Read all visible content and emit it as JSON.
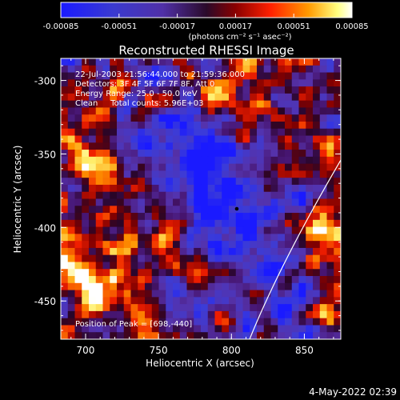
{
  "colorbar": {
    "tick_labels": [
      "-0.00085",
      "-0.00051",
      "-0.00017",
      "0.00017",
      "0.00051",
      "0.00085"
    ],
    "units_label": "(photons cm⁻² s⁻¹ asec⁻²)",
    "range": [
      -0.00085,
      0.00085
    ]
  },
  "chart_data": {
    "type": "heatmap",
    "title": "Reconstructed RHESSI Image",
    "xlabel": "Heliocentric X (arcsec)",
    "ylabel": "Heliocentric Y (arcsec)",
    "xlim": [
      683,
      875
    ],
    "ylim": [
      -476,
      -285
    ],
    "x_ticks": [
      "700",
      "750",
      "800",
      "850"
    ],
    "y_ticks": [
      "-300",
      "-350",
      "-400",
      "-450"
    ],
    "x_tick_values": [
      700,
      750,
      800,
      850
    ],
    "y_tick_values": [
      -300,
      -350,
      -400,
      -450
    ],
    "colormap": "blue-purple-red-yellow-white (diverging)",
    "annotations": [
      "22-Jul-2003 21:56:44.000 to 21:59:36.000",
      "Detectors: 3F 4F 5F 6F 7F 8F, Att 0",
      "Energy Range: 25.0 - 50.0 keV",
      "Clean     Total counts: 5.96E+03",
      "Position of Peak = [698,-440]"
    ],
    "peak": [
      698,
      -440
    ],
    "limb_arc": true
  },
  "footer": {
    "date": "4-May-2022 02:39"
  }
}
